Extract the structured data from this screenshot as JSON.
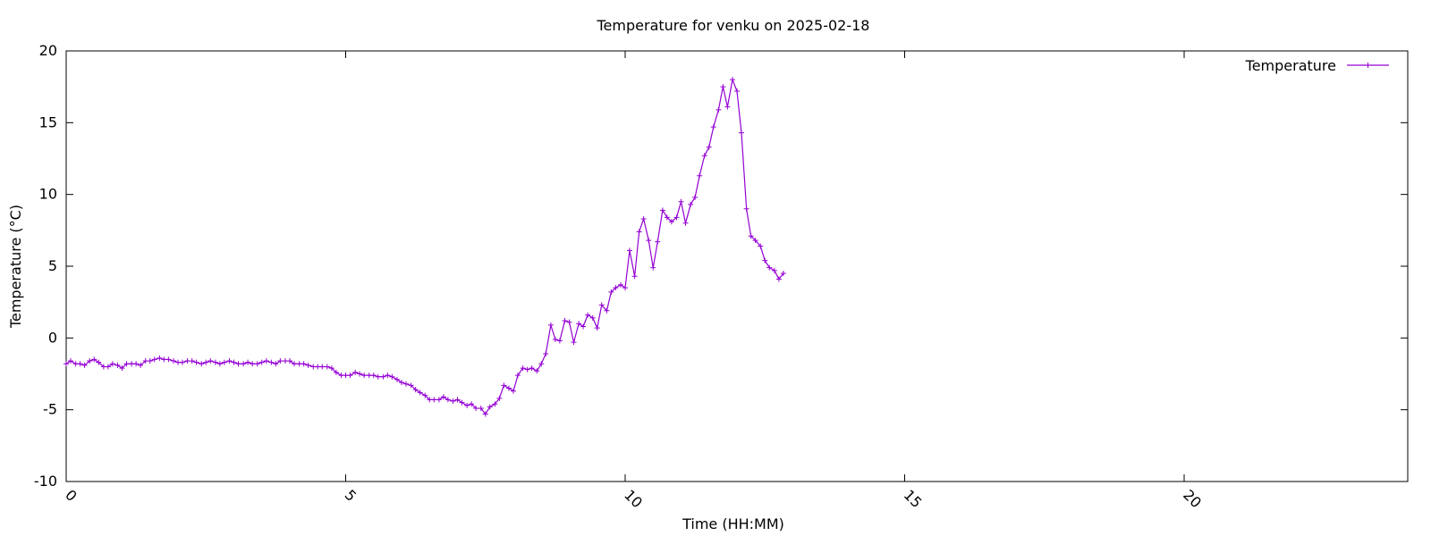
{
  "chart_data": {
    "type": "line",
    "title": "Temperature for venku on 2025-02-18",
    "xlabel": "Time (HH:MM)",
    "ylabel": "Temperature (°C)",
    "xlim": [
      0,
      24
    ],
    "ylim": [
      -10,
      20
    ],
    "x_ticks": [
      0,
      5,
      10,
      15,
      20
    ],
    "x_tick_labels": [
      "0",
      "5",
      "10",
      "15",
      "20"
    ],
    "y_ticks": [
      -10,
      -5,
      0,
      5,
      10,
      15,
      20
    ],
    "y_tick_labels": [
      "-10",
      "-5",
      "0",
      "5",
      "10",
      "15",
      "20"
    ],
    "grid": false,
    "legend_position": "top-right",
    "series": [
      {
        "name": "Temperature",
        "color": "#9400d3",
        "marker": "plus",
        "points": [
          [
            0.0,
            -1.8
          ],
          [
            0.08,
            -1.6
          ],
          [
            0.17,
            -1.8
          ],
          [
            0.25,
            -1.8
          ],
          [
            0.33,
            -1.9
          ],
          [
            0.42,
            -1.6
          ],
          [
            0.5,
            -1.5
          ],
          [
            0.58,
            -1.7
          ],
          [
            0.67,
            -2.0
          ],
          [
            0.75,
            -2.0
          ],
          [
            0.83,
            -1.8
          ],
          [
            0.92,
            -1.9
          ],
          [
            1.0,
            -2.1
          ],
          [
            1.08,
            -1.8
          ],
          [
            1.17,
            -1.8
          ],
          [
            1.25,
            -1.8
          ],
          [
            1.33,
            -1.9
          ],
          [
            1.42,
            -1.6
          ],
          [
            1.5,
            -1.6
          ],
          [
            1.58,
            -1.5
          ],
          [
            1.67,
            -1.4
          ],
          [
            1.75,
            -1.5
          ],
          [
            1.83,
            -1.5
          ],
          [
            1.92,
            -1.6
          ],
          [
            2.0,
            -1.7
          ],
          [
            2.08,
            -1.7
          ],
          [
            2.17,
            -1.6
          ],
          [
            2.25,
            -1.6
          ],
          [
            2.33,
            -1.7
          ],
          [
            2.42,
            -1.8
          ],
          [
            2.5,
            -1.7
          ],
          [
            2.58,
            -1.6
          ],
          [
            2.67,
            -1.7
          ],
          [
            2.75,
            -1.8
          ],
          [
            2.83,
            -1.7
          ],
          [
            2.92,
            -1.6
          ],
          [
            3.0,
            -1.7
          ],
          [
            3.08,
            -1.8
          ],
          [
            3.17,
            -1.8
          ],
          [
            3.25,
            -1.7
          ],
          [
            3.33,
            -1.8
          ],
          [
            3.42,
            -1.8
          ],
          [
            3.5,
            -1.7
          ],
          [
            3.58,
            -1.6
          ],
          [
            3.67,
            -1.7
          ],
          [
            3.75,
            -1.8
          ],
          [
            3.83,
            -1.6
          ],
          [
            3.92,
            -1.6
          ],
          [
            4.0,
            -1.6
          ],
          [
            4.08,
            -1.8
          ],
          [
            4.17,
            -1.8
          ],
          [
            4.25,
            -1.8
          ],
          [
            4.33,
            -1.9
          ],
          [
            4.42,
            -2.0
          ],
          [
            4.5,
            -2.0
          ],
          [
            4.58,
            -2.0
          ],
          [
            4.67,
            -2.0
          ],
          [
            4.75,
            -2.1
          ],
          [
            4.83,
            -2.4
          ],
          [
            4.92,
            -2.6
          ],
          [
            5.0,
            -2.6
          ],
          [
            5.08,
            -2.6
          ],
          [
            5.17,
            -2.4
          ],
          [
            5.25,
            -2.5
          ],
          [
            5.33,
            -2.6
          ],
          [
            5.42,
            -2.6
          ],
          [
            5.5,
            -2.6
          ],
          [
            5.58,
            -2.7
          ],
          [
            5.67,
            -2.7
          ],
          [
            5.75,
            -2.6
          ],
          [
            5.83,
            -2.7
          ],
          [
            5.92,
            -2.9
          ],
          [
            6.0,
            -3.1
          ],
          [
            6.08,
            -3.2
          ],
          [
            6.17,
            -3.3
          ],
          [
            6.25,
            -3.6
          ],
          [
            6.33,
            -3.8
          ],
          [
            6.42,
            -4.0
          ],
          [
            6.5,
            -4.3
          ],
          [
            6.58,
            -4.3
          ],
          [
            6.67,
            -4.3
          ],
          [
            6.75,
            -4.1
          ],
          [
            6.83,
            -4.3
          ],
          [
            6.92,
            -4.4
          ],
          [
            7.0,
            -4.3
          ],
          [
            7.08,
            -4.5
          ],
          [
            7.17,
            -4.7
          ],
          [
            7.25,
            -4.6
          ],
          [
            7.33,
            -4.9
          ],
          [
            7.42,
            -4.9
          ],
          [
            7.5,
            -5.3
          ],
          [
            7.58,
            -4.8
          ],
          [
            7.67,
            -4.6
          ],
          [
            7.75,
            -4.2
          ],
          [
            7.83,
            -3.3
          ],
          [
            7.92,
            -3.5
          ],
          [
            8.0,
            -3.7
          ],
          [
            8.08,
            -2.6
          ],
          [
            8.17,
            -2.1
          ],
          [
            8.25,
            -2.2
          ],
          [
            8.33,
            -2.1
          ],
          [
            8.42,
            -2.3
          ],
          [
            8.5,
            -1.8
          ],
          [
            8.58,
            -1.1
          ],
          [
            8.67,
            0.9
          ],
          [
            8.75,
            -0.1
          ],
          [
            8.83,
            -0.2
          ],
          [
            8.92,
            1.2
          ],
          [
            9.0,
            1.1
          ],
          [
            9.08,
            -0.3
          ],
          [
            9.17,
            1.0
          ],
          [
            9.25,
            0.8
          ],
          [
            9.33,
            1.6
          ],
          [
            9.42,
            1.4
          ],
          [
            9.5,
            0.7
          ],
          [
            9.58,
            2.3
          ],
          [
            9.67,
            1.9
          ],
          [
            9.75,
            3.2
          ],
          [
            9.83,
            3.5
          ],
          [
            9.92,
            3.7
          ],
          [
            10.0,
            3.5
          ],
          [
            10.08,
            6.1
          ],
          [
            10.17,
            4.3
          ],
          [
            10.25,
            7.4
          ],
          [
            10.33,
            8.3
          ],
          [
            10.42,
            6.8
          ],
          [
            10.5,
            4.9
          ],
          [
            10.58,
            6.7
          ],
          [
            10.67,
            8.9
          ],
          [
            10.75,
            8.4
          ],
          [
            10.83,
            8.1
          ],
          [
            10.92,
            8.4
          ],
          [
            11.0,
            9.5
          ],
          [
            11.08,
            8.0
          ],
          [
            11.17,
            9.3
          ],
          [
            11.25,
            9.8
          ],
          [
            11.33,
            11.3
          ],
          [
            11.42,
            12.7
          ],
          [
            11.5,
            13.3
          ],
          [
            11.58,
            14.7
          ],
          [
            11.67,
            15.9
          ],
          [
            11.75,
            17.5
          ],
          [
            11.83,
            16.1
          ],
          [
            11.92,
            18.0
          ],
          [
            12.0,
            17.2
          ],
          [
            12.08,
            14.3
          ],
          [
            12.17,
            9.0
          ],
          [
            12.25,
            7.1
          ],
          [
            12.33,
            6.8
          ],
          [
            12.42,
            6.4
          ],
          [
            12.5,
            5.4
          ],
          [
            12.58,
            4.9
          ],
          [
            12.67,
            4.7
          ],
          [
            12.75,
            4.1
          ],
          [
            12.83,
            4.5
          ]
        ]
      }
    ]
  }
}
